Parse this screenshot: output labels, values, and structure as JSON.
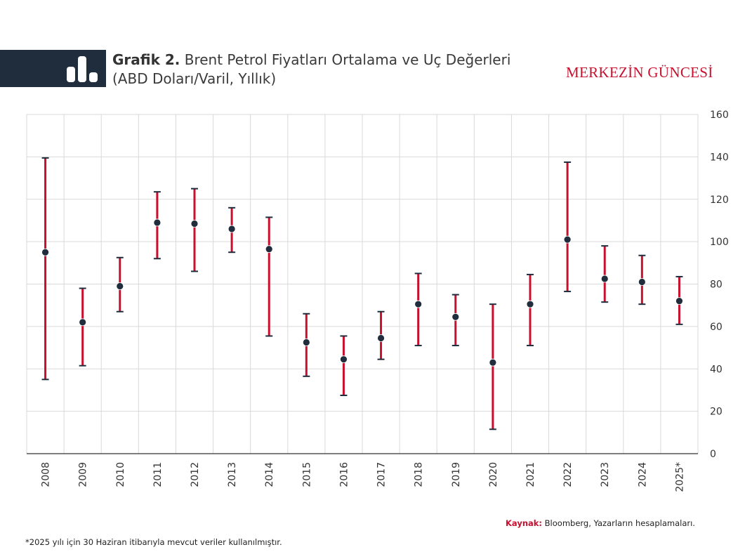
{
  "header": {
    "title_prefix": "Grafik 2.",
    "title_line1": "Brent Petrol Fiyatları Ortalama ve Uç Değerleri",
    "title_line2": "(ABD Doları/Varil, Yıllık)",
    "brand": "MERKEZİN GÜNCESİ",
    "icon": "bar-chart-icon"
  },
  "colors": {
    "header_band": "#1f2d3d",
    "range_bar": "#c8102e",
    "cap": "#1f2d3d",
    "marker": "#1f2d3d",
    "brand": "#c8102e"
  },
  "chart_data": {
    "type": "scatter",
    "title": "Brent Petrol Fiyatları Ortalama ve Uç Değerleri",
    "ylabel": "",
    "xlabel": "",
    "ylim": [
      0,
      160
    ],
    "y_ticks": [
      0,
      20,
      40,
      60,
      80,
      100,
      120,
      140,
      160
    ],
    "y_axis_side": "right",
    "grid": true,
    "categories": [
      "2008",
      "2009",
      "2010",
      "2011",
      "2012",
      "2013",
      "2014",
      "2015",
      "2016",
      "2017",
      "2018",
      "2019",
      "2020",
      "2021",
      "2022",
      "2023",
      "2024",
      "2025*"
    ],
    "series": [
      {
        "values": [
          95,
          62,
          79,
          109,
          108.5,
          106,
          96.5,
          52.5,
          44.5,
          54.5,
          70.5,
          64.5,
          43,
          70.5,
          101,
          82.5,
          81,
          72
        ]
      },
      {
        "values": [
          139.5,
          78,
          92.5,
          123.5,
          125,
          116,
          111.5,
          66,
          55.5,
          67,
          85,
          75,
          70.5,
          84.5,
          137.5,
          98,
          93.5,
          83.5
        ]
      },
      {
        "values": [
          35,
          41.5,
          67,
          92,
          86,
          95,
          55.5,
          36.5,
          27.5,
          44.5,
          51,
          51,
          11.5,
          51,
          76.5,
          71.5,
          70.5,
          61
        ]
      }
    ]
  },
  "source": {
    "label": "Kaynak:",
    "text": "Bloomberg, Yazarların hesaplamaları."
  },
  "footnote": "*2025 yılı için 30 Haziran itibarıyla mevcut veriler kullanılmıştır."
}
